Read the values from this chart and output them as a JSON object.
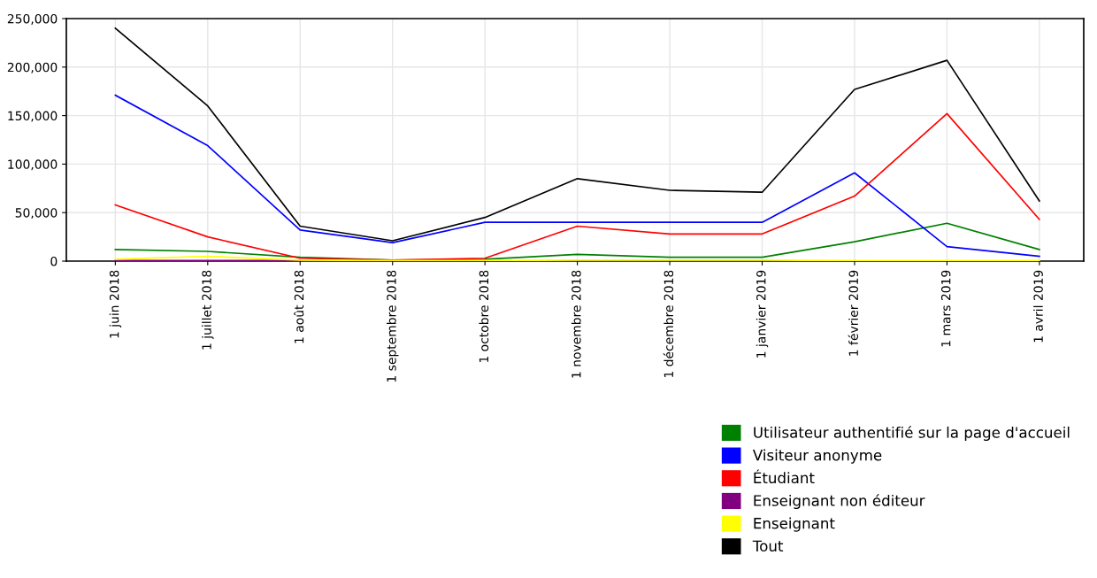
{
  "chart_data": {
    "type": "line",
    "categories": [
      "1 juin 2018",
      "1 juillet 2018",
      "1 août 2018",
      "1 septembre 2018",
      "1 octobre 2018",
      "1 novembre 2018",
      "1 décembre 2018",
      "1 janvier 2019",
      "1 février 2019",
      "1 mars 2019",
      "1 avril 2019"
    ],
    "series": [
      {
        "name": "Utilisateur authentifié sur la page d'accueil",
        "color": "#008000",
        "values": [
          12000,
          10000,
          4000,
          1000,
          2000,
          7000,
          4000,
          4000,
          20000,
          39000,
          12000
        ]
      },
      {
        "name": "Visiteur anonyme",
        "color": "#0000ff",
        "values": [
          171000,
          119000,
          32000,
          19000,
          40000,
          40000,
          40000,
          40000,
          91000,
          15000,
          5000
        ]
      },
      {
        "name": "Étudiant",
        "color": "#ff0000",
        "values": [
          58000,
          25000,
          3000,
          1000,
          3000,
          36000,
          28000,
          28000,
          67000,
          152000,
          43000
        ]
      },
      {
        "name": "Enseignant non éditeur",
        "color": "#800080",
        "values": [
          500,
          500,
          500,
          null,
          null,
          null,
          null,
          null,
          null,
          null,
          null
        ]
      },
      {
        "name": "Enseignant",
        "color": "#ffff00",
        "values": [
          2000,
          5000,
          1000,
          500,
          500,
          1000,
          1000,
          1000,
          500,
          500,
          500
        ]
      },
      {
        "name": "Tout",
        "color": "#000000",
        "values": [
          240000,
          160000,
          36000,
          21000,
          45000,
          85000,
          73000,
          71000,
          177000,
          207000,
          62000
        ]
      }
    ],
    "ylim": [
      0,
      250000
    ],
    "yticks": [
      {
        "value": 0,
        "label": "0"
      },
      {
        "value": 50000,
        "label": "50,000"
      },
      {
        "value": 100000,
        "label": "100,000"
      },
      {
        "value": 150000,
        "label": "150,000"
      },
      {
        "value": 200000,
        "label": "200,000"
      },
      {
        "value": 250000,
        "label": "250,000"
      }
    ],
    "grid": true,
    "legend": "bottom right",
    "marker": "none",
    "line_style": "solid"
  }
}
